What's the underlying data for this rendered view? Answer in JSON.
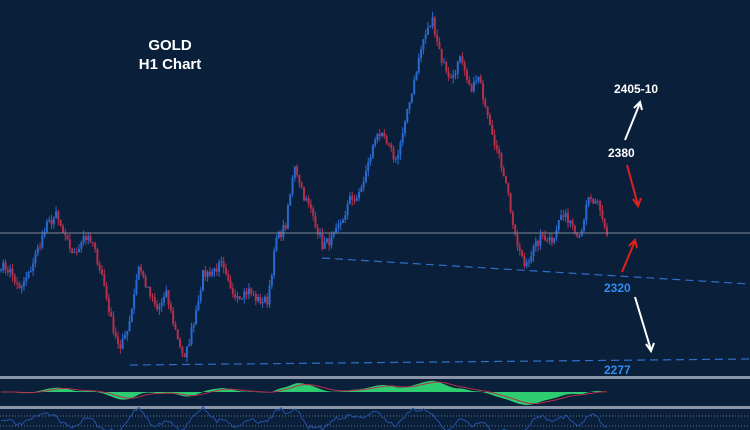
{
  "chart_data": {
    "type": "candlestick",
    "title": "GOLD",
    "subtitle": "H1 Chart",
    "closes": [
      2325,
      2322,
      2312,
      2320,
      2333,
      2345,
      2350,
      2338,
      2330,
      2340,
      2335,
      2320,
      2297,
      2282,
      2297,
      2325,
      2312,
      2302,
      2310,
      2292,
      2277,
      2297,
      2320,
      2322,
      2325,
      2312,
      2310,
      2312,
      2307,
      2307,
      2338,
      2345,
      2376,
      2360,
      2350,
      2335,
      2338,
      2345,
      2358,
      2360,
      2376,
      2393,
      2386,
      2378,
      2396,
      2419,
      2439,
      2449,
      2429,
      2419,
      2429,
      2414,
      2419,
      2403,
      2383,
      2368,
      2338,
      2325,
      2333,
      2340,
      2338,
      2350,
      2348,
      2340,
      2358,
      2355,
      2340
    ],
    "current_price_line": 2341,
    "levels": [
      {
        "label": "2405-10",
        "color": "#ffffff"
      },
      {
        "label": "2380",
        "color": "#ffffff"
      },
      {
        "label": "2320",
        "color": "#2f8cf0"
      },
      {
        "label": "2277",
        "color": "#2f8cf0"
      }
    ],
    "colors": {
      "background": "#0a1f3a",
      "up": "#2a6ad0",
      "down": "#b3304c",
      "histogram": "#2ecc71",
      "signal": "#b3304c",
      "lower_line": "#2450a8",
      "arrow_up": "#ffffff",
      "arrow_red": "#e0201e"
    },
    "grid": false
  }
}
